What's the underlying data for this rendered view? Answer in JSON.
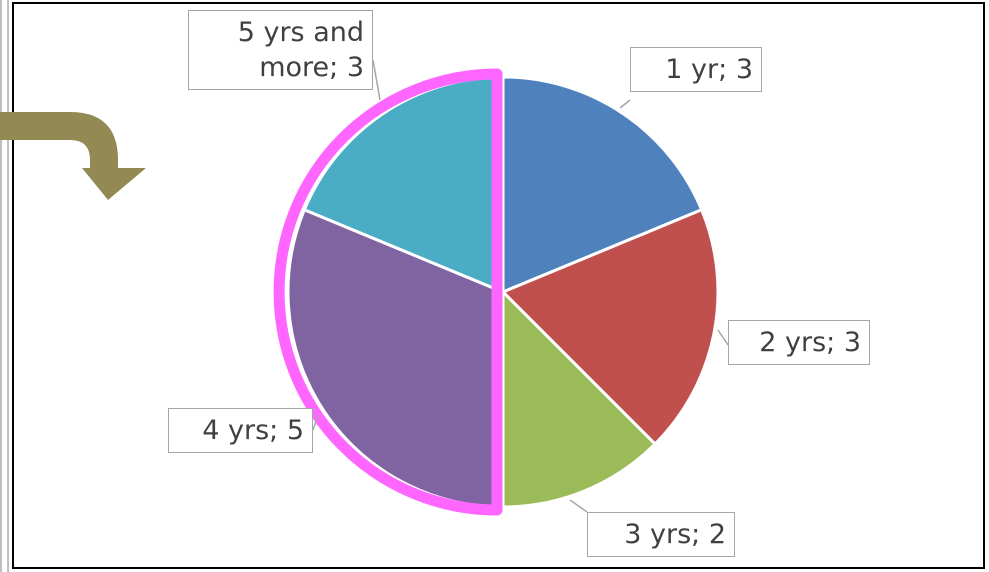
{
  "chart_data": {
    "type": "pie",
    "categories": [
      "1 yr",
      "2 yrs",
      "3 yrs",
      "4 yrs",
      "5 yrs and more"
    ],
    "values": [
      3,
      3,
      2,
      5,
      3
    ],
    "value_labels": [
      "1 yr; 3",
      "2 yrs; 3",
      "3 yrs; 2",
      "4 yrs; 5",
      "5 yrs and more; 3"
    ],
    "colors": [
      "#4f81bd",
      "#c0504d",
      "#9bbb59",
      "#8064a2",
      "#4bacc6"
    ]
  }
}
